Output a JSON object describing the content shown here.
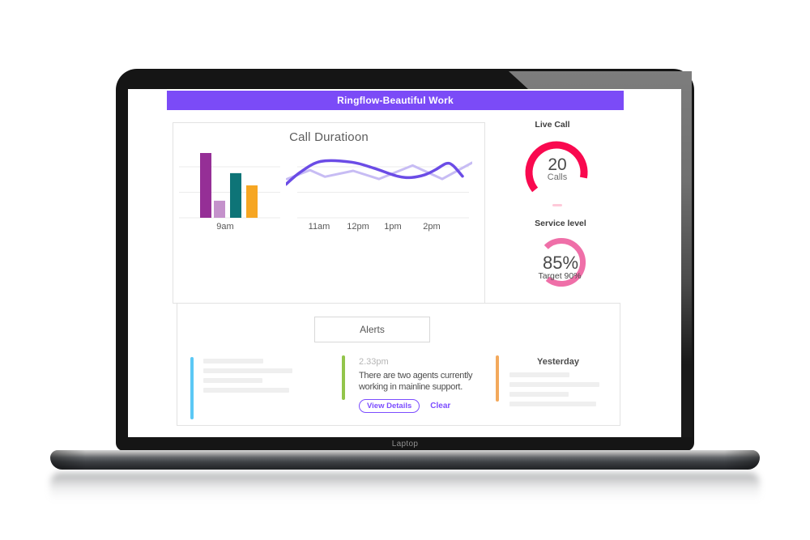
{
  "header": {
    "title": "Ringflow-Beautiful Work"
  },
  "laptop": {
    "label": "Laptop"
  },
  "panel": {
    "title": "Call Duratioon"
  },
  "chart_data": [
    {
      "type": "bar",
      "title": "Call Duratioon",
      "categories": [
        "9am"
      ],
      "series": [
        {
          "name": "bar-1",
          "color": "#952F96",
          "value": 25.4
        },
        {
          "name": "bar-2",
          "color": "#C491CB",
          "value": 6.7
        },
        {
          "name": "bar-3",
          "color": "#0E7477",
          "value": 17.5
        },
        {
          "name": "bar-4",
          "color": "#F6A623",
          "value": 12.7
        }
      ],
      "ylim": [
        0,
        28
      ],
      "xlabel": "",
      "ylabel": "",
      "grid": true
    },
    {
      "type": "line",
      "title": "Call Duratioon",
      "categories": [
        "11am",
        "12pm",
        "1pm",
        "2pm"
      ],
      "ylim": [
        0,
        28
      ],
      "grid": true,
      "series": [
        {
          "name": "duration-light",
          "color": "#C7BCF4",
          "smooth": false,
          "points": [
            [
              0.006,
              15.2
            ],
            [
              0.129,
              18.7
            ],
            [
              0.209,
              16.1
            ],
            [
              0.361,
              18.4
            ],
            [
              0.499,
              15.2
            ],
            [
              0.68,
              20.5
            ],
            [
              0.839,
              15.2
            ],
            [
              0.999,
              21.6
            ]
          ]
        },
        {
          "name": "duration-dark",
          "color": "#6B4CE6",
          "smooth": true,
          "points": [
            [
              0,
              13.1
            ],
            [
              0.078,
              17.9
            ],
            [
              0.187,
              22.1
            ],
            [
              0.352,
              21.8
            ],
            [
              0.47,
              19.5
            ],
            [
              0.6,
              16.3
            ],
            [
              0.674,
              15.8
            ],
            [
              0.743,
              16.8
            ],
            [
              0.804,
              18.9
            ],
            [
              0.861,
              21.3
            ],
            [
              0.896,
              20.5
            ],
            [
              0.948,
              16.3
            ]
          ]
        }
      ]
    },
    {
      "type": "gauge",
      "title": "Live Call",
      "value": "20",
      "label": "Calls",
      "color": "#F9094F",
      "start_deg": 141,
      "sweep_deg": 230,
      "radius": 34,
      "thickness": 9
    },
    {
      "type": "gauge",
      "title": "Service level",
      "value": "85%",
      "label": "Target 90%",
      "color": "#EF6FA8",
      "start_deg": 225,
      "sweep_deg": 265,
      "radius": 26.5,
      "thickness": 7
    }
  ],
  "alerts": {
    "title": "Alerts",
    "items": [
      {
        "kind": "skeleton",
        "accent": "#5BC8F5",
        "skeleton_lines": 4
      },
      {
        "kind": "message",
        "accent": "#93C54B",
        "time": "2.33pm",
        "message_line1": "There are two agents currently",
        "message_line2": "working in mainline support.",
        "actions": {
          "view_details": "View Details",
          "clear": "Clear"
        }
      },
      {
        "kind": "skeleton",
        "accent": "#F3A95C",
        "title": "Yesterday",
        "skeleton_lines": 4
      }
    ]
  },
  "colors": {
    "header_bg": "#7B4BF7",
    "accent_purple": "#7C4DFF",
    "gauge_live": "#F9094F",
    "gauge_service": "#EF6FA8",
    "skeleton": "#EFEFEF"
  }
}
